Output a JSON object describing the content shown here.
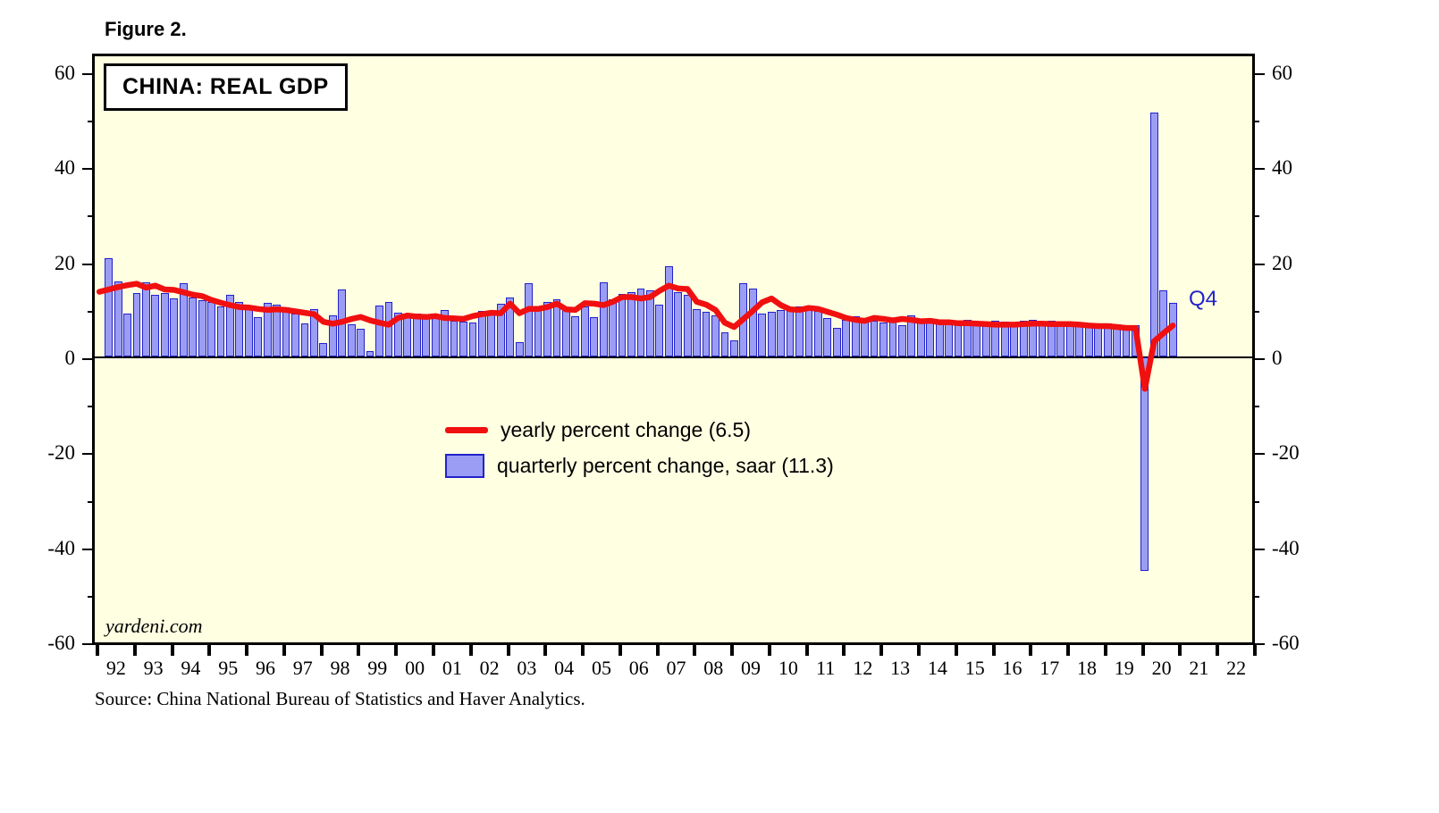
{
  "figure_label": "Figure 2.",
  "title": "CHINA: REAL GDP",
  "legend": {
    "line_label": "yearly percent change (6.5)",
    "bar_label": "quarterly percent change, saar (11.3)"
  },
  "annotations": {
    "latest_quarter": "Q4"
  },
  "watermark": "yardeni.com",
  "source": "Source: China National Bureau of Statistics and Haver Analytics.",
  "colors": {
    "plot_background": "#FFFFE2",
    "bar_fill": "#9B9DF5",
    "bar_border": "#2222CC",
    "line_red": "#F01010",
    "annotation_blue": "#2222CC",
    "frame_black": "#000000"
  },
  "chart_data": {
    "type": "combo",
    "title": "CHINA: REAL GDP",
    "grid": false,
    "legend_position": "center-left inside plot",
    "y_axis": {
      "range": [
        -60,
        60
      ],
      "major_ticks": [
        60,
        40,
        20,
        0,
        -20,
        -40,
        -60
      ],
      "minor_tick_step": 10,
      "mirrored_right": true
    },
    "x_axis": {
      "year_labels": [
        "92",
        "93",
        "94",
        "95",
        "96",
        "97",
        "98",
        "99",
        "00",
        "01",
        "02",
        "03",
        "04",
        "05",
        "06",
        "07",
        "08",
        "09",
        "10",
        "11",
        "12",
        "13",
        "14",
        "15",
        "16",
        "17",
        "18",
        "19",
        "20",
        "21",
        "22"
      ],
      "quarters_per_year": 4,
      "domain_start": "1992-Q1",
      "domain_end": "2022-Q4"
    },
    "series": [
      {
        "name": "quarterly percent change, saar",
        "type": "bar",
        "latest_value": 11.3,
        "start": "1992-Q2",
        "values": [
          20.6,
          15.8,
          9.0,
          13.4,
          15.6,
          13.0,
          13.3,
          12.2,
          15.4,
          12.4,
          11.8,
          11.5,
          10.6,
          13.0,
          11.5,
          10.0,
          8.2,
          11.2,
          10.9,
          10.3,
          9.0,
          6.9,
          9.9,
          2.9,
          8.6,
          14.1,
          6.7,
          5.9,
          1.2,
          10.7,
          11.5,
          9.3,
          9.1,
          9.1,
          8.3,
          8.7,
          9.7,
          7.5,
          7.3,
          7.2,
          9.6,
          9.1,
          11.0,
          12.4,
          3.1,
          15.5,
          9.8,
          11.5,
          12.1,
          10.0,
          8.4,
          10.5,
          8.2,
          15.6,
          12.0,
          13.2,
          13.6,
          14.3,
          14.0,
          10.9,
          18.9,
          13.6,
          13.0,
          10.0,
          9.4,
          8.7,
          5.0,
          3.4,
          15.5,
          14.3,
          9.1,
          9.4,
          9.8,
          10.0,
          10.5,
          10.2,
          9.5,
          8.1,
          6.1,
          7.7,
          8.4,
          7.9,
          7.5,
          7.1,
          7.3,
          6.6,
          8.7,
          7.8,
          7.5,
          7.0,
          7.4,
          7.1,
          7.7,
          7.4,
          7.1,
          7.5,
          7.4,
          7.2,
          7.6,
          7.7,
          7.3,
          7.5,
          7.3,
          7.4,
          7.2,
          7.0,
          6.9,
          6.9,
          6.7,
          6.6,
          6.5,
          -45.0,
          51.3,
          13.9,
          11.3
        ]
      },
      {
        "name": "yearly percent change",
        "type": "line",
        "latest_value": 6.5,
        "start": "1992-Q1",
        "values": [
          13.6,
          14.1,
          14.6,
          15.0,
          15.3,
          14.5,
          14.9,
          14.1,
          14.0,
          13.5,
          13.0,
          12.7,
          11.9,
          11.3,
          10.8,
          10.4,
          10.3,
          10.0,
          9.8,
          9.9,
          9.8,
          9.5,
          9.2,
          8.9,
          7.3,
          6.9,
          7.3,
          7.9,
          8.3,
          7.6,
          7.1,
          6.7,
          8.1,
          8.6,
          8.4,
          8.3,
          8.5,
          8.1,
          8.0,
          7.9,
          8.5,
          8.9,
          9.2,
          9.1,
          11.1,
          9.1,
          10.0,
          10.0,
          10.4,
          11.1,
          9.9,
          9.8,
          11.2,
          11.1,
          10.8,
          11.5,
          12.5,
          12.5,
          12.2,
          12.5,
          13.8,
          14.9,
          14.3,
          14.2,
          11.5,
          10.9,
          9.8,
          7.1,
          6.2,
          7.9,
          9.6,
          11.4,
          12.2,
          10.8,
          9.9,
          9.8,
          10.2,
          10.0,
          9.4,
          8.8,
          8.1,
          7.7,
          7.5,
          8.1,
          7.9,
          7.6,
          7.9,
          7.7,
          7.4,
          7.5,
          7.2,
          7.2,
          7.0,
          7.0,
          6.9,
          6.8,
          6.7,
          6.7,
          6.7,
          6.8,
          6.9,
          6.9,
          6.8,
          6.8,
          6.8,
          6.7,
          6.5,
          6.4,
          6.4,
          6.2,
          6.0,
          6.0,
          -6.8,
          3.2,
          4.9,
          6.5
        ]
      }
    ]
  }
}
